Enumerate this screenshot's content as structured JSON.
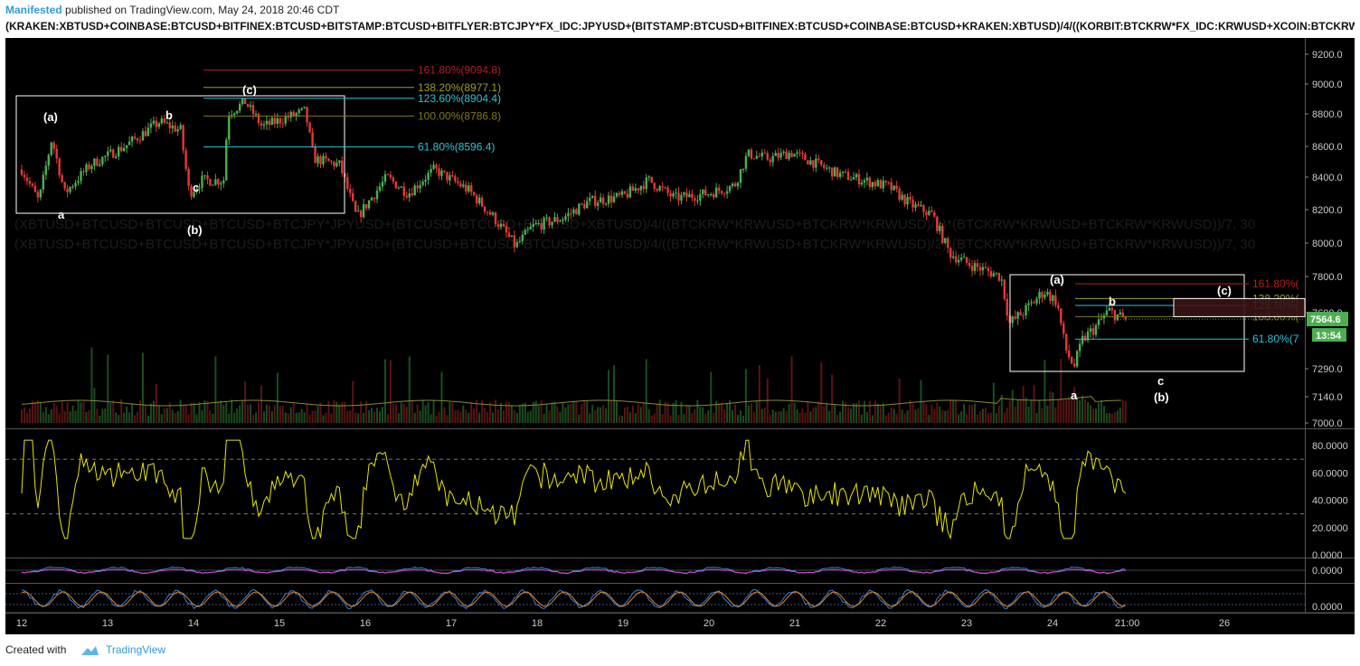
{
  "header": {
    "author": "Manifested",
    "published_text": "published on TradingView.com, May 24, 2018 20:46 CDT",
    "symbol": "(KRAKEN:XBTUSD+COINBASE:BTCUSD+BITFINEX:BTCUSD+BITSTAMP:BTCUSD+BITFLYER:BTCJPY*FX_IDC:JPYUSD+(BITSTAMP:BTCUSD+BITFINEX:BTCUSD+COINBASE:BTCUSD+KRAKEN:XBTUSD)/4/((KORBIT:BTCKRW*FX_IDC:KRWUSD+XCOIN:BTCKRW*FX_IDC"
  },
  "watermark": {
    "line1": "(XBTUSD+BTCUSD+BTCUSD+BTCUSD+BTCJPY*JPYUSD+(BTCUSD+BTCUSD+BTCUSD+XBTUSD)/4/((BTCKRW*KRWUSD+BTCKRW*KRWUSD)/2)*(BTCKRW*KRWUSD+BTCKRW*KRWUSD))/7, 30",
    "line2": "(XBTUSD+BTCUSD+BTCUSD+BTCUSD+BTCJPY*JPYUSD+(BTCUSD+BTCUSD+BTCUSD+XBTUSD)/4/((BTCKRW*KRWUSD+BTCKRW*KRWUSD)/2)*(BTCKRW*KRWUSD+BTCKRW*KRWUSD))/7, 30"
  },
  "footer": {
    "created_with": "Created with",
    "brand": "TradingView"
  },
  "colors": {
    "background": "#000000",
    "up_candle": "#4caf50",
    "down_candle": "#e53935",
    "rsi_line": "#e6e600",
    "fib_1618": "#b71c1c",
    "fib_1382": "#9e9d24",
    "fib_1236": "#26c6da",
    "fib_1000": "#827717",
    "fib_0618": "#26c6da",
    "price_badge": "#4caf50"
  },
  "chart_data": {
    "type": "candlestick",
    "price_axis": {
      "ticks": [
        "9200.0",
        "9000.0",
        "8800.0",
        "8600.0",
        "8400.0",
        "8200.0",
        "8000.0",
        "7800.0",
        "7600.0",
        "7290.0",
        "7140.0",
        "7000.0"
      ],
      "ylim": [
        7000,
        9300
      ]
    },
    "rsi_axis": {
      "ticks": [
        "80.0000",
        "60.0000",
        "40.0000",
        "20.0000",
        "0.0000"
      ],
      "ylim": [
        0,
        90
      ],
      "bands": [
        70,
        30
      ]
    },
    "osc1_axis": {
      "ticks": [
        "0.0000"
      ]
    },
    "osc2_axis": {
      "ticks": [
        "0.0000"
      ]
    },
    "x_axis": {
      "ticks": [
        "12",
        "13",
        "14",
        "15",
        "16",
        "17",
        "18",
        "19",
        "20",
        "21",
        "22",
        "23",
        "24",
        "21:00",
        "26"
      ]
    },
    "last_price": "7564.6",
    "countdown": "13:54",
    "price_path": [
      [
        12.0,
        8450
      ],
      [
        12.2,
        8250
      ],
      [
        12.35,
        8650
      ],
      [
        12.5,
        8300
      ],
      [
        12.8,
        8480
      ],
      [
        13.2,
        8600
      ],
      [
        13.6,
        8750
      ],
      [
        13.85,
        8700
      ],
      [
        13.95,
        8300
      ],
      [
        14.1,
        8380
      ],
      [
        14.35,
        8380
      ],
      [
        14.4,
        8800
      ],
      [
        14.6,
        8880
      ],
      [
        14.8,
        8720
      ],
      [
        15.1,
        8780
      ],
      [
        15.3,
        8820
      ],
      [
        15.4,
        8520
      ],
      [
        15.7,
        8480
      ],
      [
        15.9,
        8150
      ],
      [
        16.25,
        8400
      ],
      [
        16.5,
        8300
      ],
      [
        16.8,
        8450
      ],
      [
        17.2,
        8320
      ],
      [
        17.5,
        8150
      ],
      [
        17.75,
        7980
      ],
      [
        17.95,
        8100
      ],
      [
        18.3,
        8150
      ],
      [
        18.6,
        8250
      ],
      [
        19.0,
        8280
      ],
      [
        19.3,
        8380
      ],
      [
        19.6,
        8270
      ],
      [
        20.0,
        8300
      ],
      [
        20.3,
        8350
      ],
      [
        20.45,
        8550
      ],
      [
        20.7,
        8520
      ],
      [
        20.95,
        8560
      ],
      [
        21.2,
        8500
      ],
      [
        21.5,
        8420
      ],
      [
        21.8,
        8380
      ],
      [
        22.1,
        8340
      ],
      [
        22.35,
        8230
      ],
      [
        22.6,
        8170
      ],
      [
        22.8,
        7940
      ],
      [
        23.0,
        7880
      ],
      [
        23.2,
        7840
      ],
      [
        23.4,
        7800
      ],
      [
        23.5,
        7540
      ],
      [
        23.7,
        7620
      ],
      [
        23.9,
        7720
      ],
      [
        24.05,
        7660
      ],
      [
        24.15,
        7400
      ],
      [
        24.25,
        7300
      ],
      [
        24.35,
        7450
      ],
      [
        24.5,
        7520
      ],
      [
        24.65,
        7610
      ],
      [
        24.85,
        7560
      ]
    ],
    "fib_levels_1": [
      {
        "label": "161.80%(9094.8)",
        "price": 9094.8
      },
      {
        "label": "138.20%(8977.1)",
        "price": 8977.1
      },
      {
        "label": "123.60%(8904.4)",
        "price": 8904.4
      },
      {
        "label": "100.00%(8786.8)",
        "price": 8786.8
      },
      {
        "label": "61.80%(8596.4)",
        "price": 8596.4
      }
    ],
    "fib_levels_2": [
      {
        "label": "161.80%(",
        "price": 7760
      },
      {
        "label": "138.20%(",
        "price": 7678
      },
      {
        "label": "123.60%(",
        "price": 7640
      },
      {
        "label": "100.00%(",
        "price": 7578
      },
      {
        "label": "61.80%(7",
        "price": 7454
      }
    ],
    "wave_labels": [
      {
        "text": "(a)",
        "pos": "upper-left-box"
      },
      {
        "text": "a",
        "pos": "upper-left-box"
      },
      {
        "text": "b",
        "pos": "upper-left-box"
      },
      {
        "text": "c",
        "pos": "upper-left-box"
      },
      {
        "text": "(b)",
        "pos": "upper-left-box"
      },
      {
        "text": "(c)",
        "pos": "upper-left-box"
      },
      {
        "text": "(a)",
        "pos": "lower-right-box"
      },
      {
        "text": "a",
        "pos": "lower-right-box"
      },
      {
        "text": "b",
        "pos": "lower-right-box"
      },
      {
        "text": "c",
        "pos": "lower-right-box"
      },
      {
        "text": "(b)",
        "pos": "lower-right-box"
      },
      {
        "text": "(c)",
        "pos": "lower-right-box"
      }
    ]
  }
}
